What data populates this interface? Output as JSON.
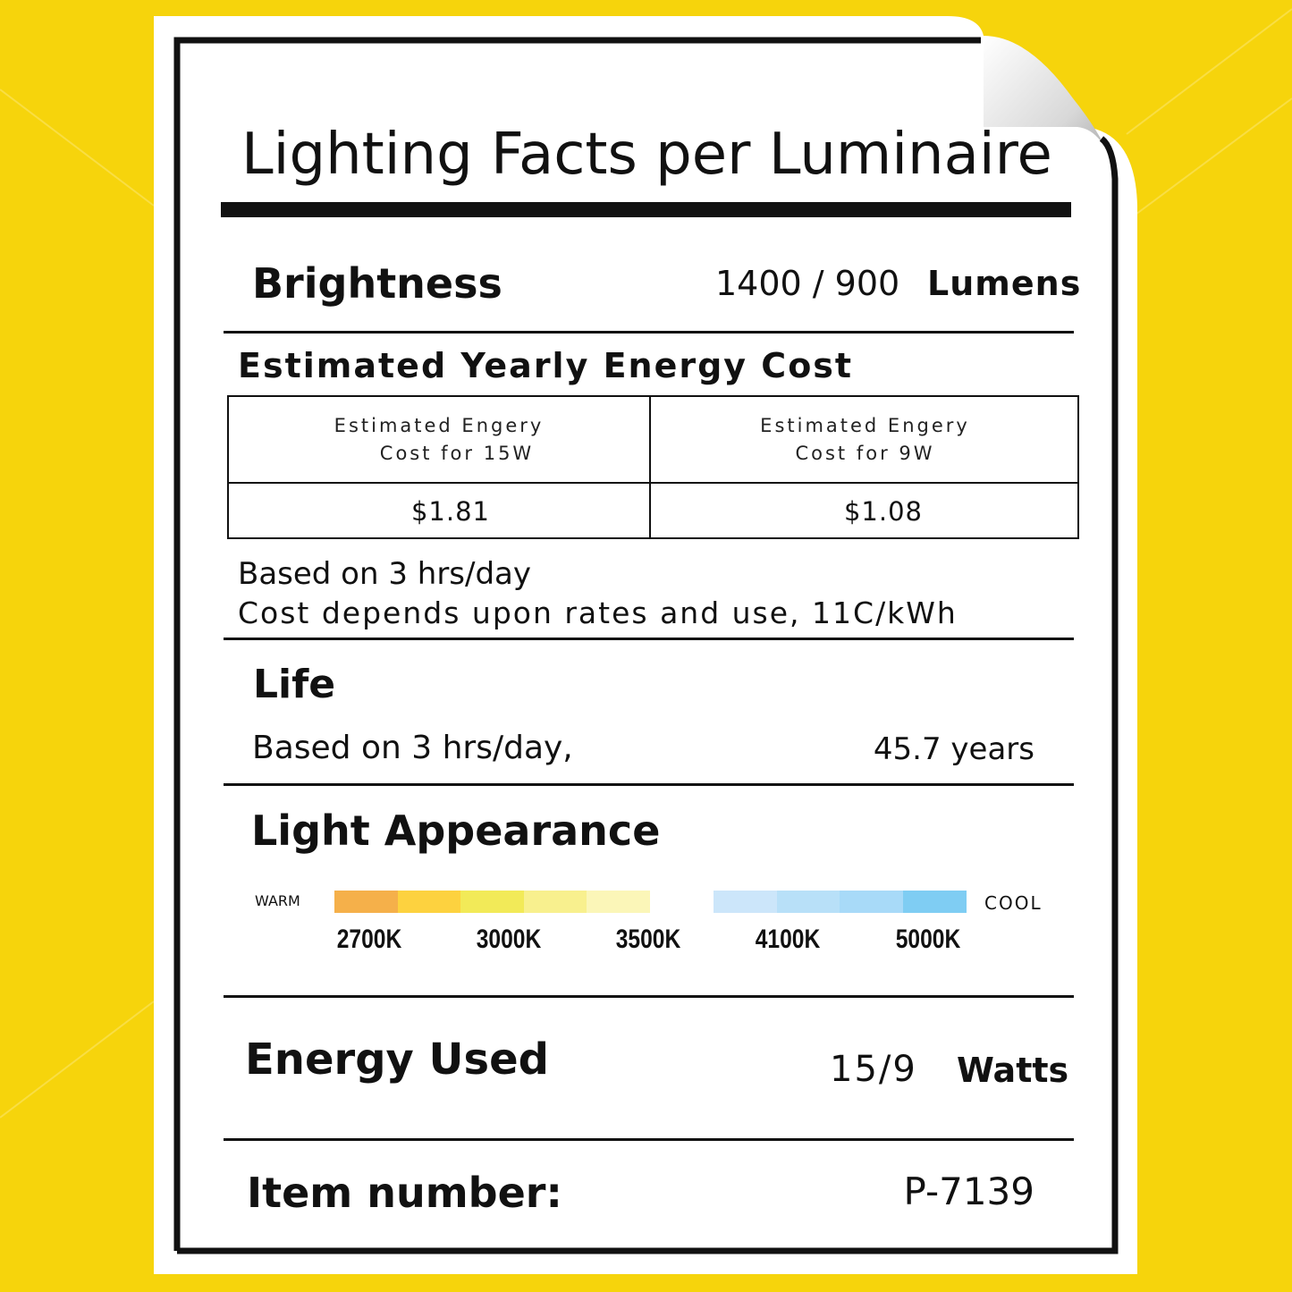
{
  "title": "Lighting Facts per Luminaire",
  "brightness": {
    "label": "Brightness",
    "value": "1400 / 900",
    "unit": "Lumens"
  },
  "energy_cost": {
    "heading": "Estimated Yearly Energy Cost",
    "columns": [
      {
        "header_line1": "Estimated Engery",
        "header_line2": "Cost for 15W",
        "value": "$1.81"
      },
      {
        "header_line1": "Estimated Engery",
        "header_line2": "Cost for 9W",
        "value": "$1.08"
      }
    ],
    "note_line1": "Based on 3 hrs/day",
    "note_line2": "Cost depends upon rates and use, 11C/kWh"
  },
  "life": {
    "label": "Life",
    "basis": "Based on 3 hrs/day,",
    "value": "45.7 years"
  },
  "light_appearance": {
    "label": "Light Appearance",
    "warm_label": "WARM",
    "cool_label": "COOL",
    "warm_colors": [
      "#f5b04a",
      "#fdd23f",
      "#f2ea58",
      "#f8f08e",
      "#fbf6b8"
    ],
    "cool_colors": [
      "#cce6fa",
      "#b8e0f8",
      "#a8daf8",
      "#7fcdf3"
    ],
    "temperatures": [
      "2700K",
      "3000K",
      "3500K",
      "4100K",
      "5000K"
    ]
  },
  "energy_used": {
    "label": "Energy Used",
    "value": "15/9",
    "unit": "Watts"
  },
  "item": {
    "label": "Item number:",
    "value": "P-7139"
  },
  "colors": {
    "background": "#f6d40c",
    "paper": "#ffffff",
    "ink": "#111111"
  }
}
